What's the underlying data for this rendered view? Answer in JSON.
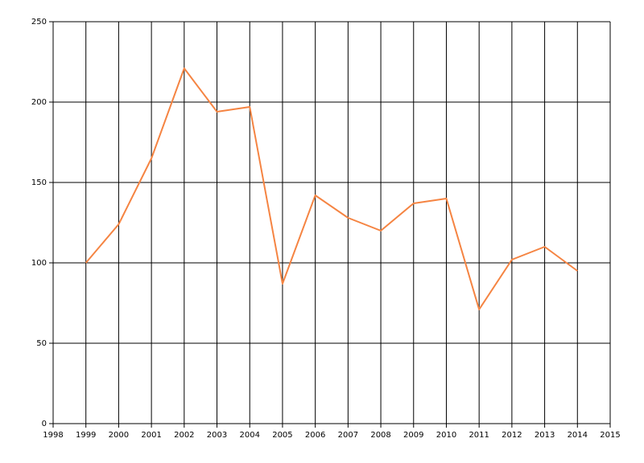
{
  "chart_data": {
    "type": "line",
    "x": [
      1999,
      2000,
      2001,
      2002,
      2003,
      2004,
      2005,
      2006,
      2007,
      2008,
      2009,
      2010,
      2011,
      2012,
      2013,
      2014
    ],
    "values": [
      100,
      124,
      165,
      221,
      194,
      197,
      87,
      142,
      128,
      120,
      137,
      140,
      71,
      102,
      110,
      95
    ],
    "color": "#f58442",
    "xlim": [
      1998,
      2015
    ],
    "xticks": [
      1998,
      1999,
      2000,
      2001,
      2002,
      2003,
      2004,
      2005,
      2006,
      2007,
      2008,
      2009,
      2010,
      2011,
      2012,
      2013,
      2014,
      2015
    ],
    "ylim": [
      0,
      250
    ],
    "yticks": [
      0,
      50,
      100,
      150,
      200,
      250
    ],
    "grid": true
  }
}
